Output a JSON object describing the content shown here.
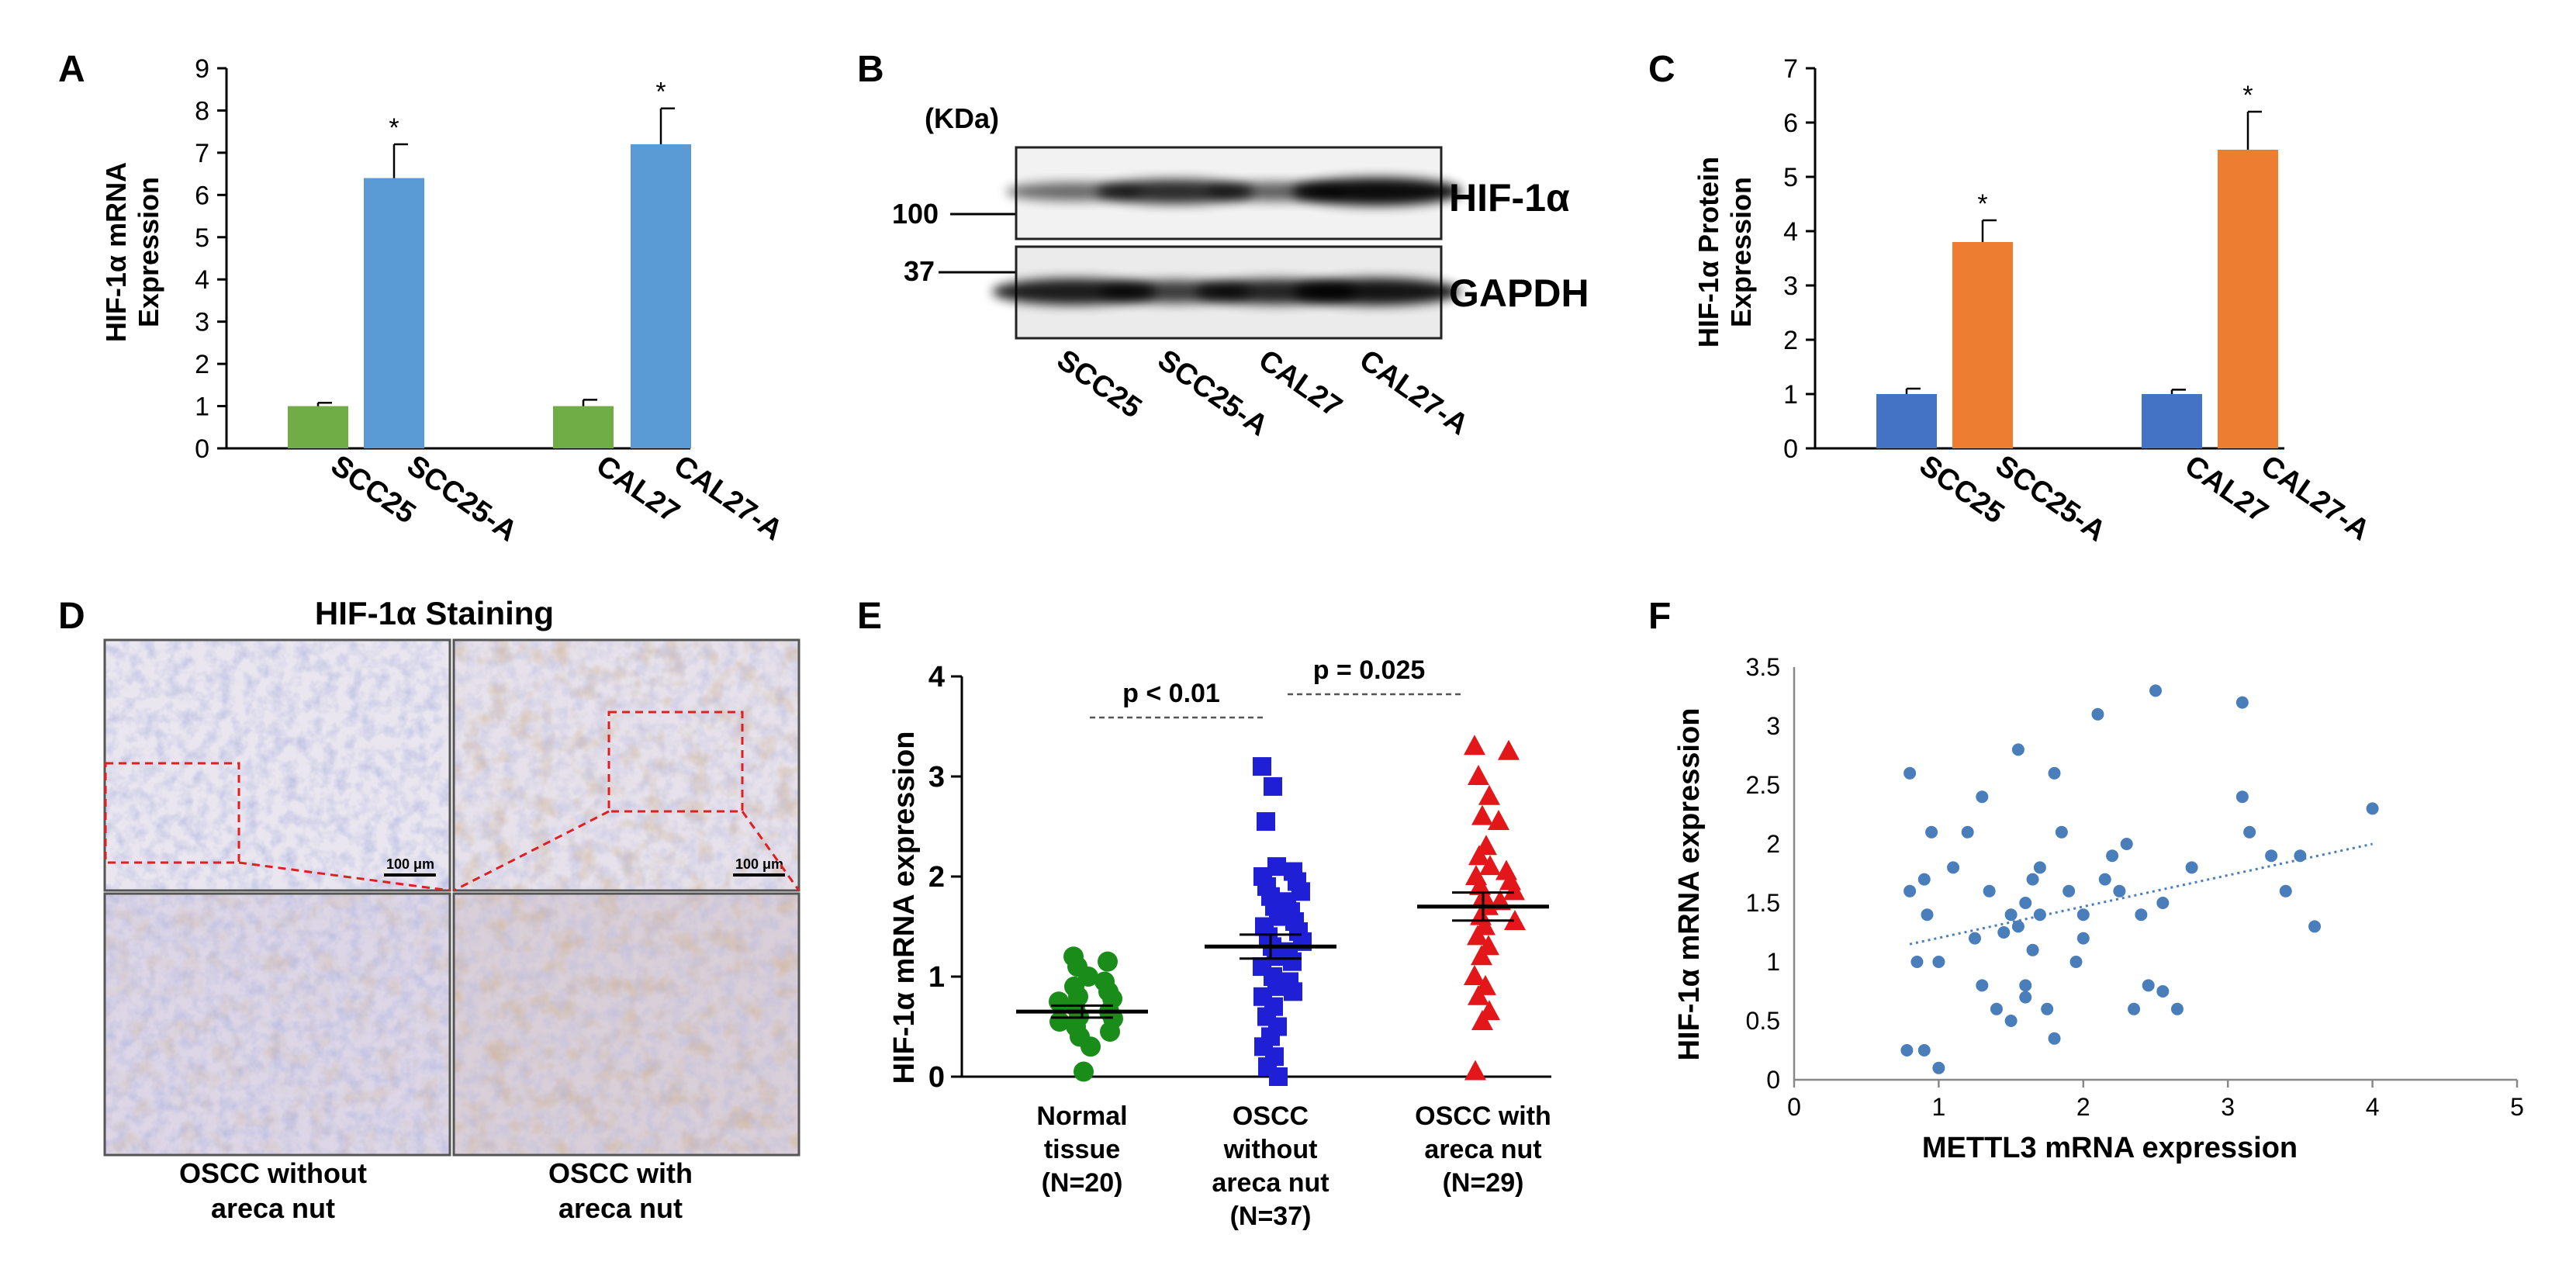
{
  "panel_letters": {
    "a": "A",
    "b": "B",
    "c": "C",
    "d": "D",
    "e": "E",
    "f": "F"
  },
  "colors": {
    "green": "#70ad47",
    "light_blue": "#5b9bd5",
    "dark_blue": "#4472c4",
    "orange": "#ed7d31",
    "scatter_green": "#1a8c1a",
    "scatter_blue": "#1f1fd6",
    "scatter_red": "#e3161a",
    "scatter_f": "#4a7ebb"
  },
  "chart_data": [
    {
      "id": "A",
      "type": "bar",
      "ylabel": "HIF-1α mRNA Expression",
      "ylabel_lines": [
        "HIF-1α mRNA",
        "Expression"
      ],
      "ylim": [
        0,
        9
      ],
      "yticks": [
        "0",
        "1",
        "2",
        "3",
        "4",
        "5",
        "6",
        "7",
        "8",
        "9"
      ],
      "categories": [
        "SCC25",
        "SCC25-A",
        "CAL27",
        "CAL27-A"
      ],
      "values": [
        1.0,
        6.4,
        1.0,
        7.2
      ],
      "errors": [
        0.08,
        0.8,
        0.15,
        0.85
      ],
      "significance": [
        "",
        "*",
        "",
        "*"
      ]
    },
    {
      "id": "B",
      "type": "table",
      "unit_label": "(KDa)",
      "markers": [
        "100",
        "37"
      ],
      "rows": [
        "HIF-1α",
        "GAPDH"
      ],
      "lanes": [
        "SCC25",
        "SCC25-A",
        "CAL27",
        "CAL27-A"
      ],
      "band_intensity": {
        "HIF-1α": [
          0.45,
          0.8,
          0.5,
          1.0
        ],
        "GAPDH": [
          0.9,
          0.7,
          0.85,
          0.95
        ]
      }
    },
    {
      "id": "C",
      "type": "bar",
      "ylabel": "HIF-1α Protein Expression",
      "ylabel_lines": [
        "HIF-1α Protein",
        "Expression"
      ],
      "ylim": [
        0,
        7
      ],
      "yticks": [
        "0",
        "1",
        "2",
        "3",
        "4",
        "5",
        "6",
        "7"
      ],
      "categories": [
        "SCC25",
        "SCC25-A",
        "CAL27",
        "CAL27-A"
      ],
      "values": [
        1.0,
        3.8,
        1.0,
        5.5
      ],
      "errors": [
        0.1,
        0.4,
        0.08,
        0.7
      ],
      "significance": [
        "",
        "*",
        "",
        "*"
      ]
    },
    {
      "id": "D",
      "type": "table",
      "title": "HIF-1α Staining",
      "scale_bar": "100 μm",
      "columns": [
        [
          "OSCC without",
          "areca nut"
        ],
        [
          "OSCC with",
          "areca nut"
        ]
      ]
    },
    {
      "id": "E",
      "type": "scatter",
      "ylabel": "HIF-1α mRNA expression",
      "ylim": [
        0,
        4
      ],
      "yticks": [
        "0",
        "1",
        "2",
        "3",
        "4"
      ],
      "groups": [
        {
          "name": [
            "Normal",
            "tissue",
            "(N=20)"
          ],
          "mean": 0.65,
          "sem": 0.06,
          "values": [
            1.2,
            1.15,
            1.1,
            1.0,
            0.95,
            0.9,
            0.85,
            0.8,
            0.78,
            0.75,
            0.7,
            0.65,
            0.6,
            0.58,
            0.55,
            0.5,
            0.45,
            0.4,
            0.3,
            0.05
          ]
        },
        {
          "name": [
            "OSCC",
            "without",
            "areca nut",
            "(N=37)"
          ],
          "mean": 1.3,
          "sem": 0.12,
          "values": [
            3.1,
            2.9,
            2.55,
            2.1,
            2.05,
            2.0,
            1.95,
            1.9,
            1.85,
            1.8,
            1.75,
            1.7,
            1.65,
            1.6,
            1.55,
            1.5,
            1.45,
            1.4,
            1.35,
            1.3,
            1.25,
            1.2,
            1.15,
            1.1,
            1.0,
            0.95,
            0.9,
            0.85,
            0.8,
            0.7,
            0.6,
            0.5,
            0.4,
            0.3,
            0.2,
            0.1,
            0.0
          ]
        },
        {
          "name": [
            "OSCC with",
            "areca nut",
            "(N=29)"
          ],
          "mean": 1.7,
          "sem": 0.14,
          "values": [
            3.3,
            3.25,
            3.0,
            2.8,
            2.6,
            2.55,
            2.3,
            2.2,
            2.1,
            2.05,
            2.0,
            1.95,
            1.9,
            1.85,
            1.8,
            1.75,
            1.7,
            1.6,
            1.55,
            1.5,
            1.4,
            1.3,
            1.2,
            1.0,
            0.9,
            0.8,
            0.65,
            0.55,
            0.05
          ]
        }
      ],
      "comparisons": [
        {
          "label": "p < 0.01",
          "groups": [
            0,
            1
          ]
        },
        {
          "label": "p = 0.025",
          "groups": [
            1,
            2
          ]
        }
      ]
    },
    {
      "id": "F",
      "type": "scatter",
      "xlabel": "METTL3 mRNA expression",
      "ylabel": "HIF-1α mRNA expression",
      "xlim": [
        0,
        5
      ],
      "ylim": [
        0,
        3.5
      ],
      "xticks": [
        "0",
        "1",
        "2",
        "3",
        "4",
        "5"
      ],
      "yticks": [
        "0",
        "0.5",
        "1",
        "1.5",
        "2",
        "2.5",
        "3",
        "3.5"
      ],
      "trendline": {
        "x": [
          0.8,
          4.0
        ],
        "y": [
          1.15,
          2.0
        ]
      },
      "points": [
        [
          0.8,
          2.6
        ],
        [
          0.8,
          1.6
        ],
        [
          0.85,
          1.0
        ],
        [
          0.9,
          1.7
        ],
        [
          0.92,
          1.4
        ],
        [
          0.95,
          2.1
        ],
        [
          1.0,
          1.0
        ],
        [
          0.78,
          0.25
        ],
        [
          0.9,
          0.25
        ],
        [
          1.0,
          0.1
        ],
        [
          1.1,
          1.8
        ],
        [
          1.2,
          2.1
        ],
        [
          1.3,
          2.4
        ],
        [
          1.35,
          1.6
        ],
        [
          1.4,
          0.6
        ],
        [
          1.5,
          0.5
        ],
        [
          1.55,
          2.8
        ],
        [
          1.6,
          1.5
        ],
        [
          1.65,
          1.1
        ],
        [
          1.7,
          1.8
        ],
        [
          1.8,
          2.6
        ],
        [
          1.85,
          2.1
        ],
        [
          1.9,
          1.6
        ],
        [
          2.0,
          1.2
        ],
        [
          2.1,
          3.1
        ],
        [
          2.15,
          1.7
        ],
        [
          2.2,
          1.9
        ],
        [
          2.3,
          2.0
        ],
        [
          2.4,
          1.4
        ],
        [
          2.5,
          3.3
        ],
        [
          2.55,
          1.5
        ],
        [
          2.65,
          0.6
        ],
        [
          2.75,
          1.8
        ],
        [
          3.1,
          3.2
        ],
        [
          3.1,
          2.4
        ],
        [
          3.15,
          2.1
        ],
        [
          3.3,
          1.9
        ],
        [
          3.4,
          1.6
        ],
        [
          3.5,
          1.9
        ],
        [
          3.6,
          1.3
        ],
        [
          4.0,
          2.3
        ],
        [
          1.45,
          1.25
        ],
        [
          1.55,
          1.3
        ],
        [
          1.6,
          0.7
        ],
        [
          1.7,
          1.4
        ],
        [
          1.75,
          0.6
        ],
        [
          1.8,
          0.35
        ],
        [
          2.45,
          0.8
        ],
        [
          2.55,
          0.75
        ],
        [
          2.35,
          0.6
        ],
        [
          1.3,
          0.8
        ],
        [
          1.6,
          0.8
        ],
        [
          1.95,
          1.0
        ],
        [
          2.25,
          1.6
        ],
        [
          1.25,
          1.2
        ],
        [
          1.5,
          1.4
        ],
        [
          2.0,
          1.4
        ],
        [
          1.65,
          1.7
        ]
      ]
    }
  ]
}
